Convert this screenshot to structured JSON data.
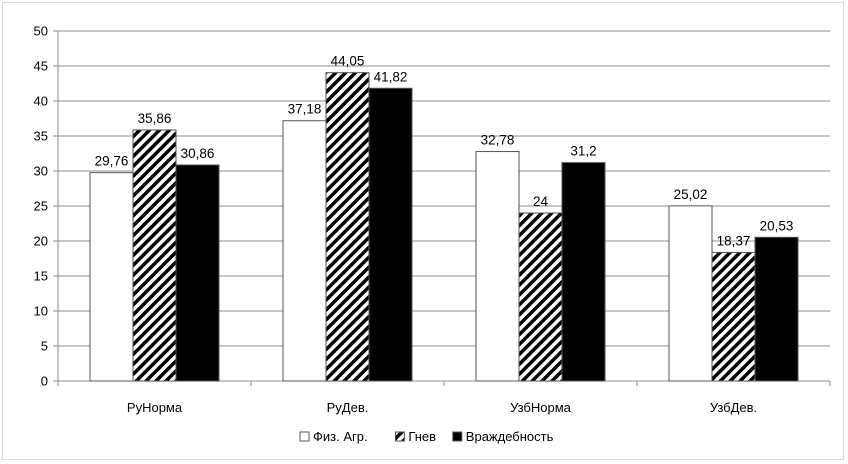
{
  "chart_data": {
    "type": "bar",
    "title": "",
    "xlabel": "",
    "ylabel": "",
    "ylim": [
      0,
      50
    ],
    "y_ticks": [
      0,
      5,
      10,
      15,
      20,
      25,
      30,
      35,
      40,
      45,
      50
    ],
    "grid": true,
    "legend_position": "bottom",
    "categories": [
      "РуНорма",
      "РуДев.",
      "УзбНорма",
      "УзбДев."
    ],
    "series": [
      {
        "name": "Физ. Агр.",
        "values": [
          29.76,
          37.18,
          32.78,
          25.02
        ],
        "labels": [
          "29,76",
          "37,18",
          "32,78",
          "25,02"
        ],
        "fill": "white"
      },
      {
        "name": "Гнев",
        "values": [
          35.86,
          44.05,
          24,
          18.37
        ],
        "labels": [
          "35,86",
          "44,05",
          "24",
          "18,37"
        ],
        "fill": "diagonal-hatch"
      },
      {
        "name": "Враждебность",
        "values": [
          30.86,
          41.82,
          31.2,
          20.53
        ],
        "labels": [
          "30,86",
          "41,82",
          "31,2",
          "20,53"
        ],
        "fill": "black"
      }
    ]
  }
}
